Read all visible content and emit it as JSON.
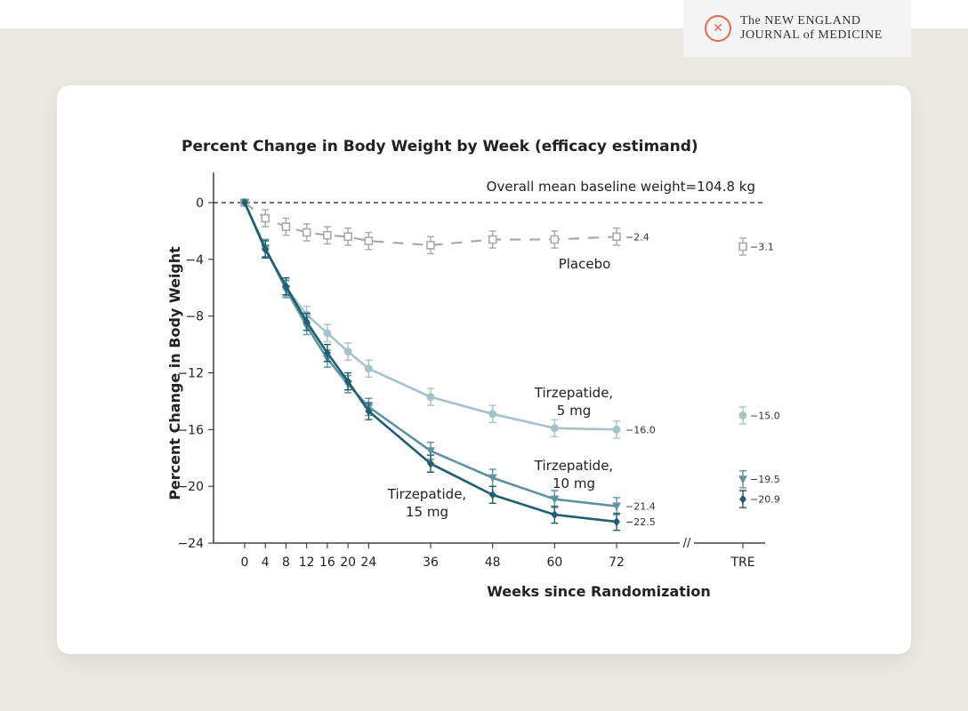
{
  "logo": {
    "line1": "The NEW ENGLAND",
    "line2": "JOURNAL of MEDICINE"
  },
  "chart_data": {
    "type": "line",
    "title": "Percent Change in Body Weight by Week (efficacy estimand)",
    "xlabel": "Weeks since Randomization",
    "ylabel": "Percent Change in Body Weight",
    "annotation": "Overall mean baseline weight=104.8 kg",
    "x": [
      0,
      4,
      8,
      12,
      16,
      20,
      24,
      36,
      48,
      60,
      72
    ],
    "x_ticks": [
      "0",
      "4",
      "8",
      "12",
      "16",
      "20",
      "24",
      "36",
      "48",
      "60",
      "72"
    ],
    "extra_category": "TRE",
    "ylim": [
      -24,
      0
    ],
    "y_ticks": [
      "0",
      "−4",
      "−8",
      "−12",
      "−16",
      "−20",
      "−24"
    ],
    "y_tick_values": [
      0,
      -4,
      -8,
      -12,
      -16,
      -20,
      -24
    ],
    "grid": false,
    "reference_line": 0,
    "series": [
      {
        "name": "Placebo",
        "label_lines": [
          "Placebo"
        ],
        "color": "#a9a9a9",
        "marker": "open-square",
        "dashed": true,
        "values": [
          0,
          -1.1,
          -1.7,
          -2.1,
          -2.3,
          -2.4,
          -2.7,
          -3.0,
          -2.6,
          -2.6,
          -2.4
        ],
        "end_label": "−2.4",
        "tre": -3.1,
        "tre_label": "−3.1"
      },
      {
        "name": "Tirzepatide, 5 mg",
        "label_lines": [
          "Tirzepatide,",
          "5 mg"
        ],
        "color": "#a6c3ca",
        "marker": "circle",
        "dashed": false,
        "values": [
          0,
          -3.2,
          -6.0,
          -7.9,
          -9.2,
          -10.5,
          -11.7,
          -13.7,
          -14.9,
          -15.9,
          -16.0
        ],
        "end_label": "−16.0",
        "tre": -15.0,
        "tre_label": "−15.0"
      },
      {
        "name": "Tirzepatide, 10 mg",
        "label_lines": [
          "Tirzepatide,",
          "10 mg"
        ],
        "color": "#5f93a3",
        "marker": "triangle-down",
        "dashed": false,
        "values": [
          0,
          -3.2,
          -6.1,
          -8.7,
          -11.0,
          -12.8,
          -14.4,
          -17.5,
          -19.4,
          -20.9,
          -21.4
        ],
        "end_label": "−21.4",
        "tre": -19.5,
        "tre_label": "−19.5"
      },
      {
        "name": "Tirzepatide, 15 mg",
        "label_lines": [
          "Tirzepatide,",
          "15 mg"
        ],
        "color": "#1f5f72",
        "marker": "diamond",
        "dashed": false,
        "values": [
          0,
          -3.3,
          -5.9,
          -8.4,
          -10.6,
          -12.6,
          -14.7,
          -18.4,
          -20.6,
          -22.0,
          -22.5
        ],
        "end_label": "−22.5",
        "tre": -20.9,
        "tre_label": "−20.9"
      }
    ],
    "error_bar": 0.6
  }
}
